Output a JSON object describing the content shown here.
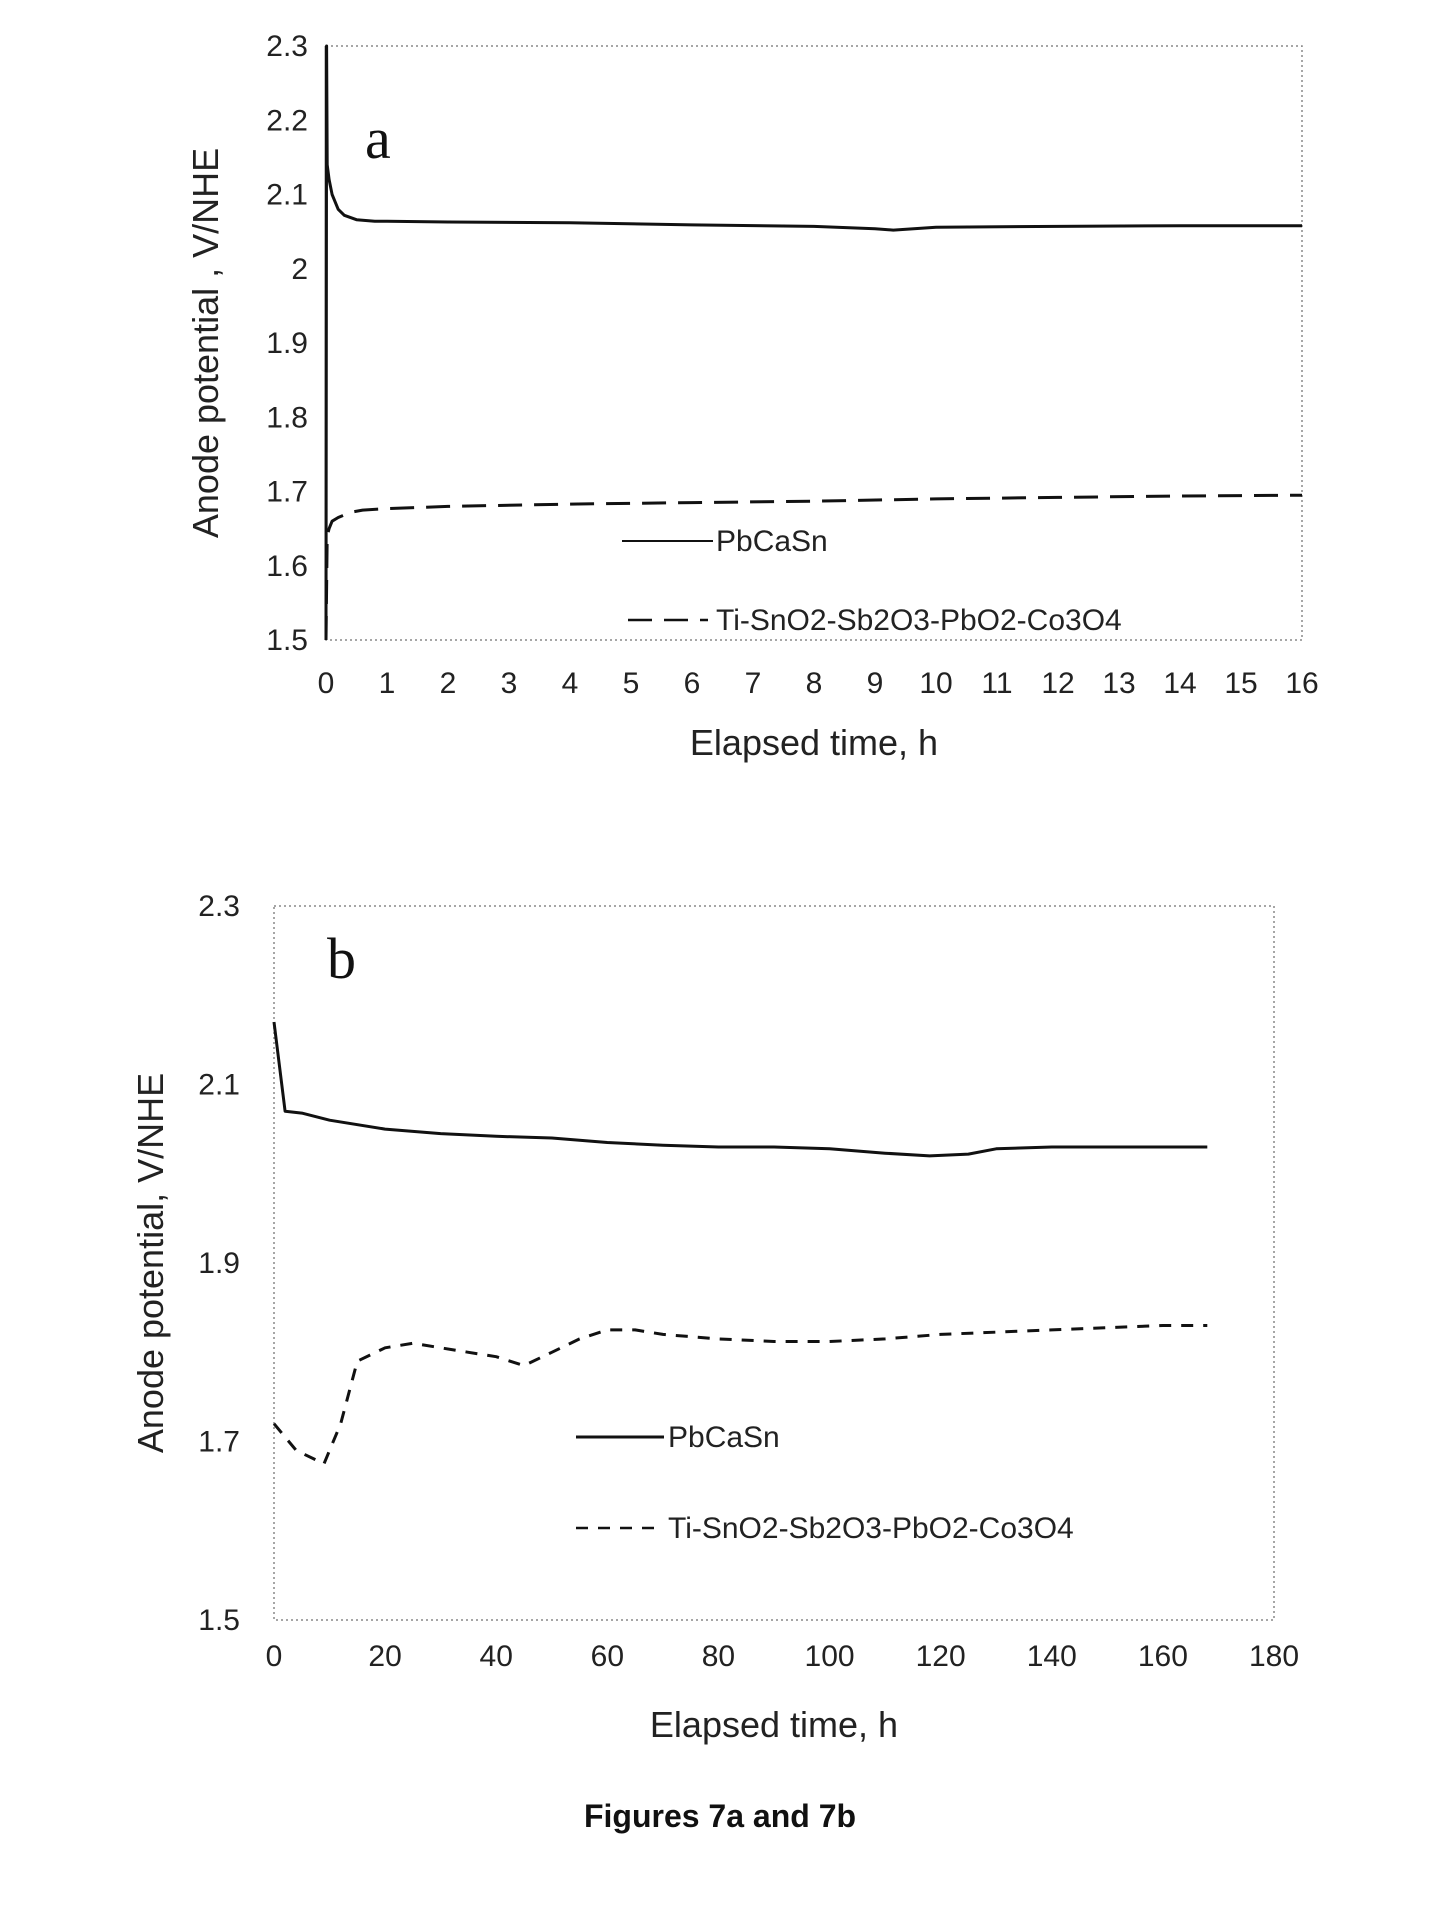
{
  "figure": {
    "caption": "Figures 7a and 7b"
  },
  "chart_data": [
    {
      "type": "line",
      "panel": "a",
      "xlabel": "Elapsed time, h",
      "ylabel": "Anode potential , V/NHE",
      "xlim": [
        0,
        16
      ],
      "ylim": [
        1.5,
        2.3
      ],
      "xticks": [
        0,
        1,
        2,
        3,
        4,
        5,
        6,
        7,
        8,
        9,
        10,
        11,
        12,
        13,
        14,
        15,
        16
      ],
      "yticks": [
        1.5,
        1.6,
        1.7,
        1.8,
        1.9,
        2,
        2.1,
        2.2,
        2.3
      ],
      "ytick_labels": [
        "1.5",
        "1.6",
        "1.7",
        "1.8",
        "1.9",
        "2",
        "2.1",
        "2.2",
        "2.3"
      ],
      "grid": false,
      "legend_position": "center-right",
      "series": [
        {
          "name": "PbCaSn",
          "style": "solid",
          "x": [
            0,
            0.01,
            0.02,
            0.05,
            0.1,
            0.2,
            0.3,
            0.5,
            0.8,
            1,
            2,
            4,
            6,
            8,
            9,
            9.3,
            10,
            12,
            14,
            16
          ],
          "y": [
            1.5,
            2.3,
            2.14,
            2.12,
            2.1,
            2.08,
            2.072,
            2.066,
            2.064,
            2.064,
            2.063,
            2.062,
            2.059,
            2.057,
            2.054,
            2.052,
            2.056,
            2.057,
            2.058,
            2.058
          ]
        },
        {
          "name": "Ti-SnO2-Sb2O3-PbO2-Co3O4",
          "style": "dashed",
          "x": [
            0,
            0.02,
            0.05,
            0.1,
            0.2,
            0.4,
            0.6,
            1,
            2,
            4,
            6,
            8,
            10,
            12,
            14,
            16
          ],
          "y": [
            1.5,
            1.64,
            1.65,
            1.66,
            1.665,
            1.672,
            1.675,
            1.677,
            1.68,
            1.683,
            1.685,
            1.687,
            1.69,
            1.692,
            1.694,
            1.695
          ]
        }
      ]
    },
    {
      "type": "line",
      "panel": "b",
      "xlabel": "Elapsed time, h",
      "ylabel": "Anode potential, V/NHE",
      "xlim": [
        0,
        180
      ],
      "ylim": [
        1.5,
        2.3
      ],
      "xticks": [
        0,
        20,
        40,
        60,
        80,
        100,
        120,
        140,
        160,
        180
      ],
      "yticks": [
        1.5,
        1.7,
        1.9,
        2.1,
        2.3
      ],
      "ytick_labels": [
        "1.5",
        "1.7",
        "1.9",
        "2.1",
        "2.3"
      ],
      "grid": false,
      "legend_position": "center-right",
      "series": [
        {
          "name": "PbCaSn",
          "style": "solid",
          "x": [
            0,
            2,
            5,
            10,
            20,
            30,
            40,
            50,
            60,
            70,
            80,
            90,
            100,
            110,
            118,
            125,
            130,
            140,
            150,
            168
          ],
          "y": [
            2.17,
            2.07,
            2.068,
            2.06,
            2.05,
            2.045,
            2.042,
            2.04,
            2.035,
            2.032,
            2.03,
            2.03,
            2.028,
            2.023,
            2.02,
            2.022,
            2.028,
            2.03,
            2.03,
            2.03
          ]
        },
        {
          "name": "Ti-SnO2-Sb2O3-PbO2-Co3O4",
          "style": "dashed",
          "x": [
            0,
            4,
            9,
            12,
            15,
            20,
            25,
            30,
            35,
            40,
            45,
            50,
            55,
            60,
            65,
            70,
            80,
            90,
            100,
            110,
            120,
            140,
            160,
            168
          ],
          "y": [
            1.72,
            1.69,
            1.675,
            1.72,
            1.79,
            1.805,
            1.81,
            1.805,
            1.8,
            1.795,
            1.785,
            1.8,
            1.815,
            1.825,
            1.825,
            1.82,
            1.815,
            1.812,
            1.812,
            1.815,
            1.82,
            1.825,
            1.83,
            1.83
          ]
        }
      ]
    }
  ]
}
